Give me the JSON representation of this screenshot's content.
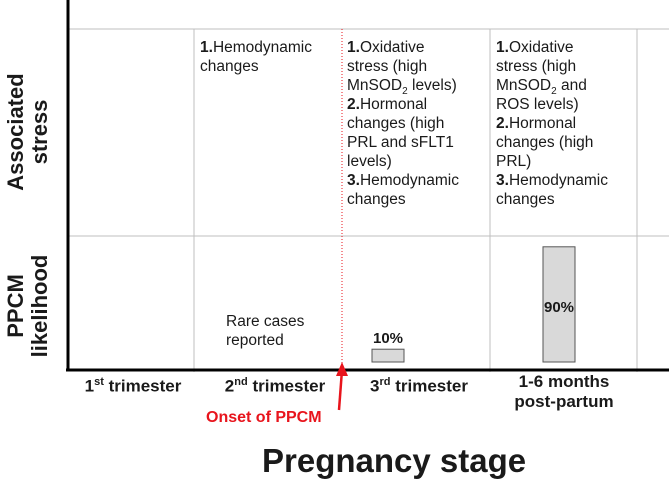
{
  "y_labels": {
    "associated_stress": [
      "Associated",
      "stress"
    ],
    "ppcm_likelihood": [
      "PPCM",
      "likelihood"
    ]
  },
  "stress": {
    "second": [
      {
        "num": "1.",
        "text": "Hemodynamic"
      },
      {
        "num": "",
        "text": "changes"
      }
    ],
    "third": {
      "l1_num": "1.",
      "l1": "Oxidative",
      "l2": "stress (high",
      "l3_pre": "MnSOD",
      "l3_sub": "2",
      "l3_post": " levels)",
      "l4_num": "2.",
      "l4": "Hormonal",
      "l5": "changes (high",
      "l6": "PRL and sFLT1",
      "l7": "levels)",
      "l8_num": "3.",
      "l8": "Hemodynamic",
      "l9": "changes"
    },
    "fourth": {
      "l1_num": "1.",
      "l1": "Oxidative",
      "l2": "stress (high",
      "l3_pre": "MnSOD",
      "l3_sub": "2",
      "l3_post": " and",
      "l4": "ROS levels)",
      "l5_num": "2.",
      "l5": "Hormonal",
      "l6": "changes (high",
      "l7": "PRL)",
      "l8_num": "3.",
      "l8": "Hemodynamic",
      "l9": "changes"
    }
  },
  "rare_cases": [
    "Rare cases",
    "reported"
  ],
  "stages": {
    "first": {
      "ord": "1",
      "sup": "st",
      "rest": " trimester"
    },
    "second": {
      "ord": "2",
      "sup": "nd",
      "rest": " trimester"
    },
    "third": {
      "ord": "3",
      "sup": "rd",
      "rest": " trimester"
    },
    "fourth": [
      "1-6 months",
      "post-partum"
    ]
  },
  "onset_label": "Onset of PPCM",
  "x_title": "Pregnancy stage",
  "colors": {
    "onset": "#e8141c",
    "bar_fill": "#d9d9d9",
    "bar_stroke": "#555555",
    "grid": "#bfbfbf"
  },
  "chart_data": {
    "type": "bar",
    "categories": [
      "1st trimester",
      "2nd trimester",
      "3rd trimester",
      "1-6 months post-partum"
    ],
    "values": [
      null,
      null,
      10,
      90
    ],
    "data_labels": [
      "",
      "",
      "10%",
      "90%"
    ],
    "ylim": [
      0,
      100
    ]
  }
}
